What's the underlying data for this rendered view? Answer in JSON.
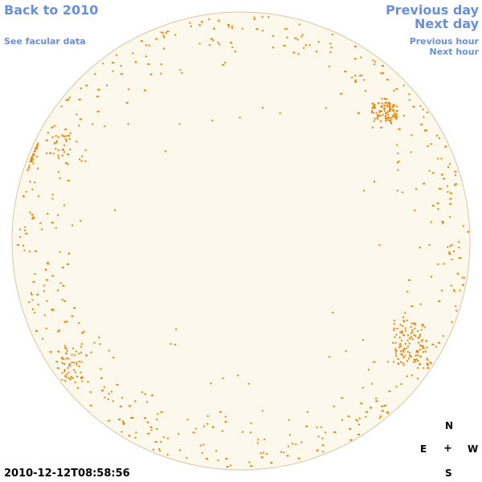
{
  "nav": {
    "back": "Back to 2010",
    "facular": "See facular data",
    "previous_day": "Previous day",
    "next_day": "Next day",
    "previous_hour": "Previous hour",
    "next_hour": "Next hour"
  },
  "timestamp": "2010-12-12T08:58:56",
  "compass": {
    "north": "N",
    "east": "E",
    "center": "+",
    "west": "W",
    "south": "S"
  },
  "colors": {
    "disk_fill": "#fdf8ec",
    "disk_border": "#d9c6a4",
    "facula": "#e8860a",
    "link": "#6a8fd8"
  }
}
